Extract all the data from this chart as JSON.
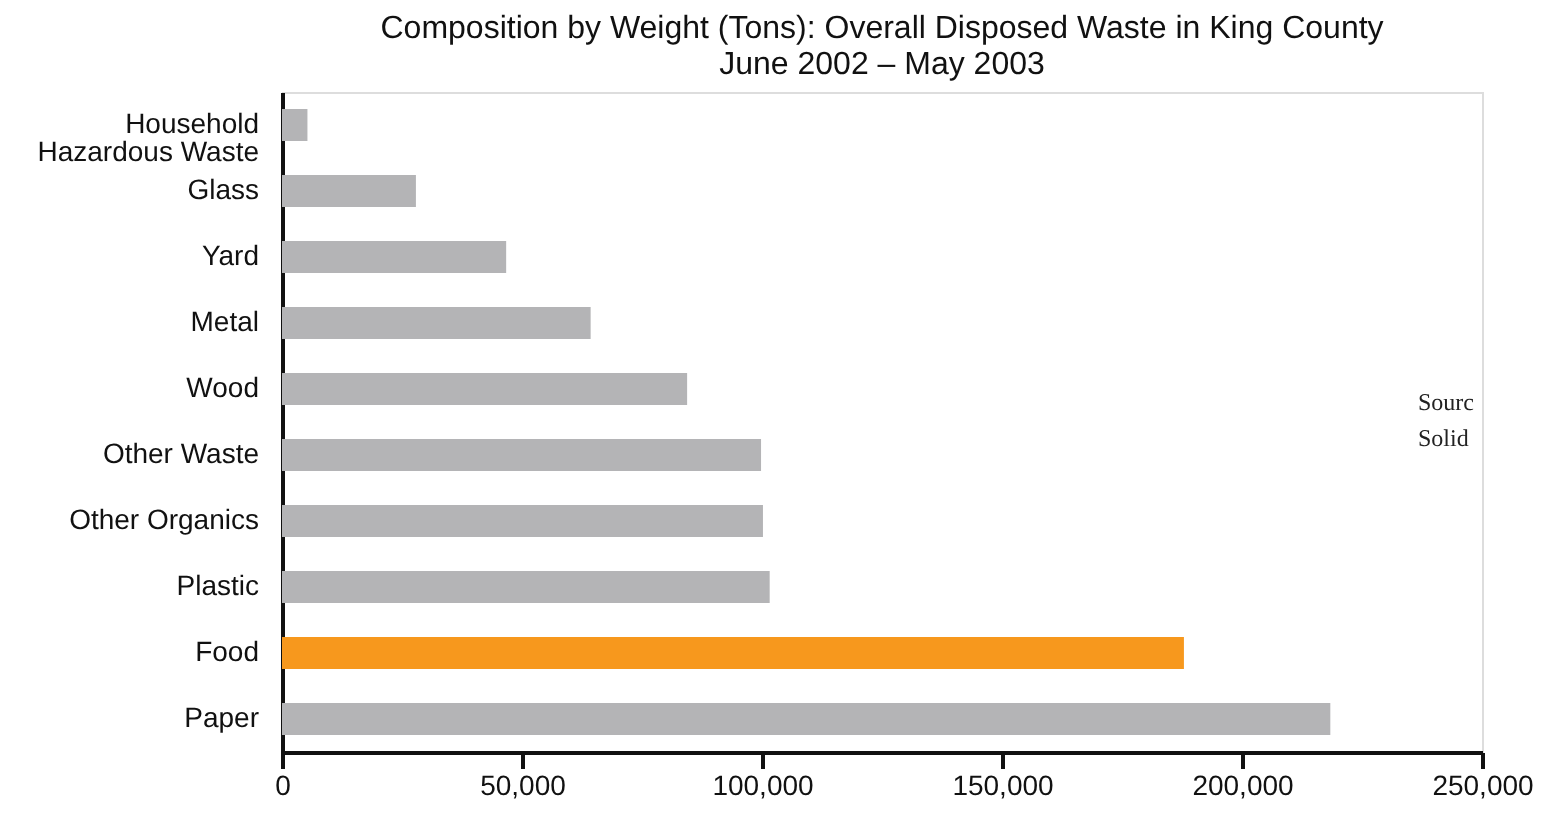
{
  "chart_data": {
    "type": "bar",
    "orientation": "horizontal",
    "title": "Composition by Weight (Tons): Overall Disposed Waste in King County",
    "subtitle": "June 2002 – May 2003",
    "categories": [
      "Household Hazardous Waste",
      "Glass",
      "Yard",
      "Metal",
      "Wood",
      "Other Waste",
      "Other Organics",
      "Plastic",
      "Food",
      "Paper"
    ],
    "values": [
      5300,
      27900,
      46700,
      64300,
      84400,
      99800,
      100200,
      101600,
      187900,
      218400
    ],
    "colors": [
      "#b4b4b6",
      "#b4b4b6",
      "#b4b4b6",
      "#b4b4b6",
      "#b4b4b6",
      "#b4b4b6",
      "#b4b4b6",
      "#b4b4b6",
      "#f7981d",
      "#b4b4b6"
    ],
    "xlim": [
      0,
      250000
    ],
    "xticks": [
      0,
      {
        "value": 50000,
        "label": "50,000"
      },
      {
        "value": 100000,
        "label": "100,000"
      },
      {
        "value": 150000,
        "label": "150,000"
      },
      {
        "value": 200000,
        "label": "200,000"
      },
      {
        "value": 250000,
        "label": "250,000"
      }
    ],
    "grid": false,
    "legend": false,
    "annotations": [
      "Sourc",
      "Solid"
    ]
  }
}
